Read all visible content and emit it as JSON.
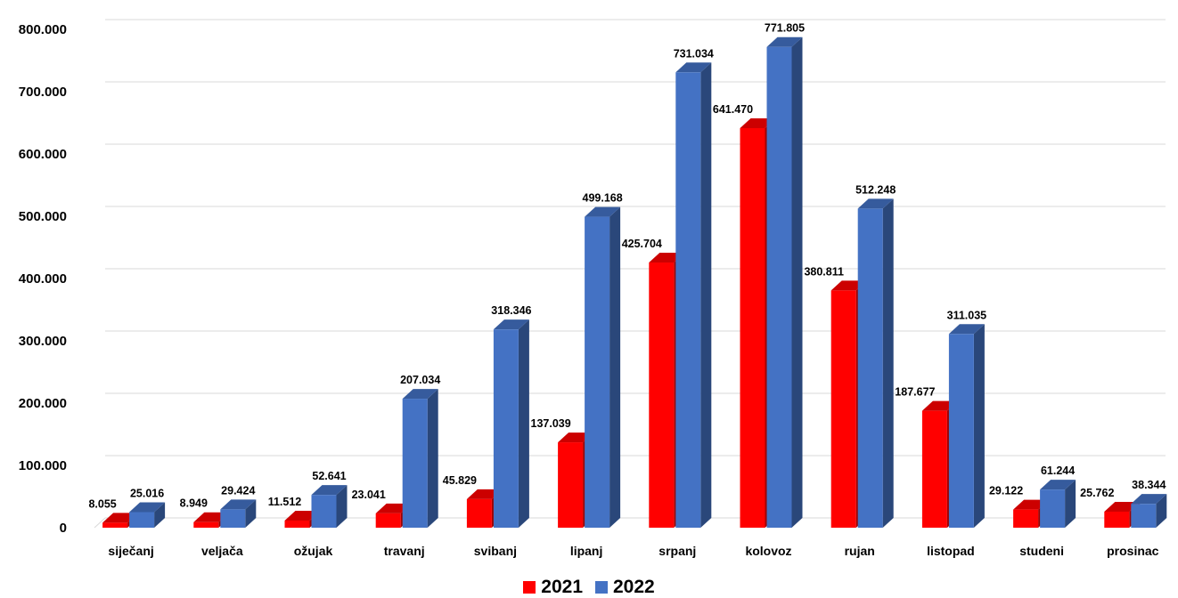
{
  "chart_data": {
    "type": "bar",
    "categories": [
      "siječanj",
      "veljača",
      "ožujak",
      "travanj",
      "svibanj",
      "lipanj",
      "srpanj",
      "kolovoz",
      "rujan",
      "listopad",
      "studeni",
      "prosinac"
    ],
    "series": [
      {
        "name": "2021",
        "color": "#ff0000",
        "values": [
          8055,
          8949,
          11512,
          23041,
          45829,
          137039,
          425704,
          641470,
          380811,
          187677,
          29122,
          25762
        ],
        "labels": [
          "8.055",
          "8.949",
          "11.512",
          "23.041",
          "45.829",
          "137.039",
          "425.704",
          "641.470",
          "380.811",
          "187.677",
          "29.122",
          "25.762"
        ]
      },
      {
        "name": "2022",
        "color": "#4472c4",
        "values": [
          25016,
          29424,
          52641,
          207034,
          318346,
          499168,
          731034,
          771805,
          512248,
          311035,
          61244,
          38344
        ],
        "labels": [
          "25.016",
          "29.424",
          "52.641",
          "207.034",
          "318.346",
          "499.168",
          "731.034",
          "771.805",
          "512.248",
          "311.035",
          "61.244",
          "38.344"
        ]
      }
    ],
    "yticks": [
      "0",
      "100.000",
      "200.000",
      "300.000",
      "400.000",
      "500.000",
      "600.000",
      "700.000",
      "800.000"
    ],
    "ylim": [
      0,
      800000
    ],
    "grid": true,
    "legend_position": "bottom",
    "title": "",
    "xlabel": "",
    "ylabel": ""
  }
}
